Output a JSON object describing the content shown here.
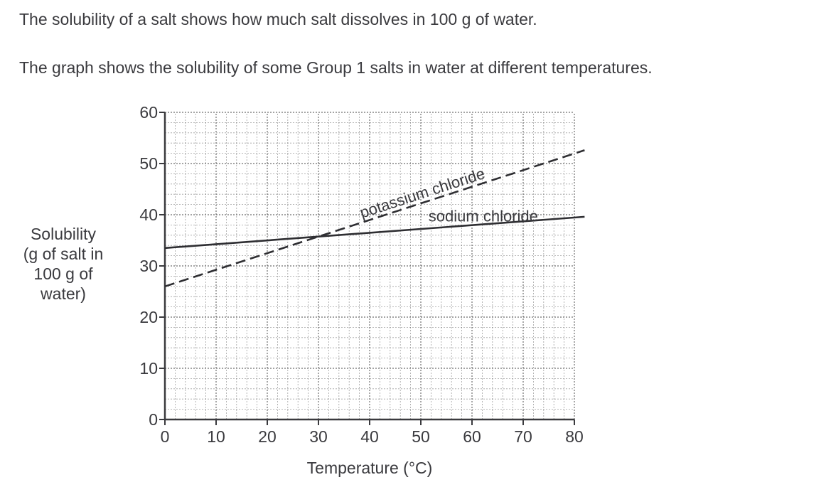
{
  "text": {
    "paragraph1": "The solubility of a salt shows how much salt dissolves in 100 g of water.",
    "paragraph2": "The graph shows the solubility of some Group 1 salts in water at different temperatures."
  },
  "chart_data": {
    "type": "line",
    "title": "",
    "xlabel": "Temperature (°C)",
    "ylabel_lines": [
      "Solubility",
      "(g of salt in",
      "100 g of",
      "water)"
    ],
    "xlim": [
      0,
      80
    ],
    "ylim": [
      0,
      60
    ],
    "xticks": [
      0,
      10,
      20,
      30,
      40,
      50,
      60,
      70,
      80
    ],
    "yticks": [
      0,
      10,
      20,
      30,
      40,
      50,
      60
    ],
    "xtick_labels": [
      "0",
      "10",
      "20",
      "30",
      "40",
      "50",
      "60",
      "70",
      "80"
    ],
    "ytick_labels": [
      "0",
      "10",
      "20",
      "30",
      "40",
      "50",
      "60"
    ],
    "grid": true,
    "grid_minor_step": 2,
    "series": [
      {
        "name": "potassium chloride",
        "style": "dashed",
        "x": [
          0,
          82
        ],
        "y": [
          26,
          52.6
        ]
      },
      {
        "name": "sodium chloride",
        "style": "solid",
        "x": [
          0,
          82
        ],
        "y": [
          33.5,
          39.6
        ]
      }
    ],
    "colors": {
      "line": "#2e2e32",
      "grid": "#555555",
      "axis": "#3a3a3e"
    }
  }
}
